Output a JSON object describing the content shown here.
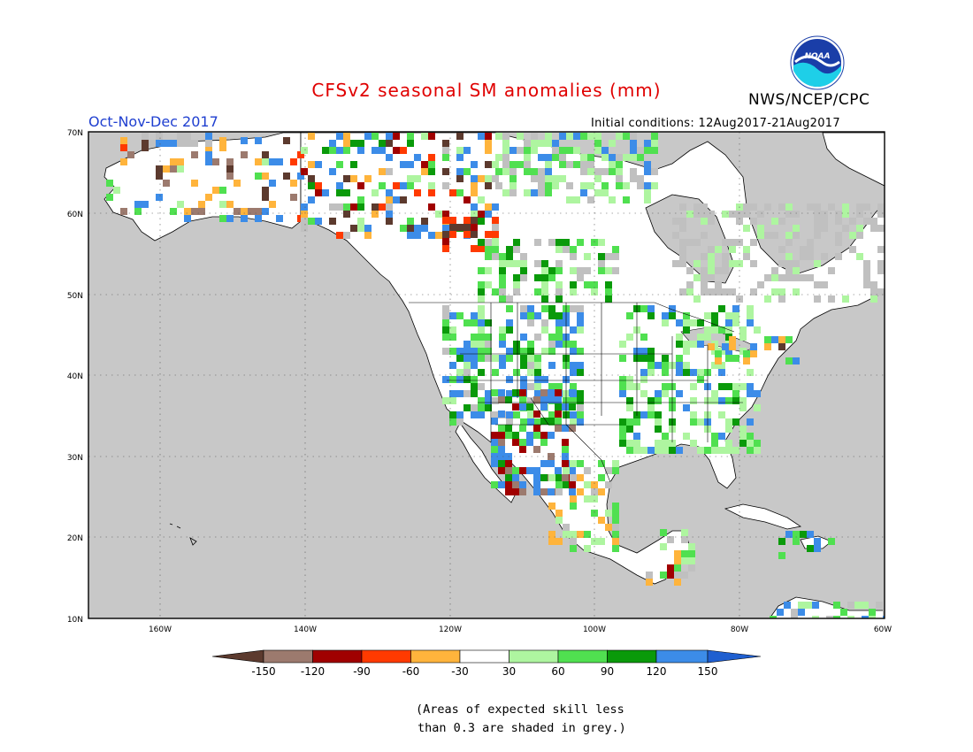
{
  "header": {
    "title": "CFSv2 seasonal SM anomalies (mm)",
    "season": "Oct-Nov-Dec 2017",
    "initial_conditions": "Initial conditions: 12Aug2017-21Aug2017",
    "agency": "NWS/NCEP/CPC",
    "logo_text": "NOAA"
  },
  "map": {
    "region": "North America",
    "lat_labels": [
      "70N",
      "60N",
      "50N",
      "40N",
      "30N",
      "20N",
      "10N"
    ],
    "lon_labels": [
      "160W",
      "140W",
      "120W",
      "100W",
      "80W",
      "60W"
    ],
    "ocean_color": "#c8c8c8",
    "skill_mask_color": "#c0c0c0"
  },
  "colorbar": {
    "tick_labels": [
      "-150",
      "-120",
      "-90",
      "-60",
      "-30",
      "30",
      "60",
      "90",
      "120",
      "150"
    ],
    "colors": [
      "#5c3a2e",
      "#9c7a6e",
      "#a00000",
      "#ff3a00",
      "#ffb43c",
      "#ffffff",
      "#aef5a0",
      "#50e050",
      "#0a9a0a",
      "#3c8ce8",
      "#1f5fd0"
    ]
  },
  "footnote": {
    "line1": "(Areas of expected skill less",
    "line2": "than 0.3 are shaded in grey.)"
  }
}
